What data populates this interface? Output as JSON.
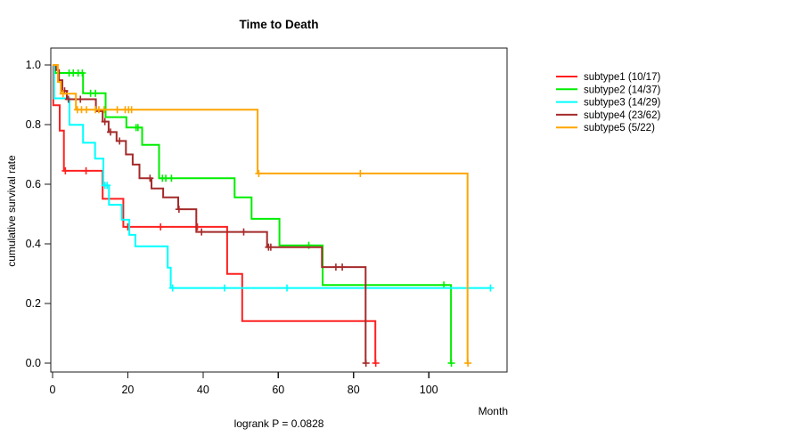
{
  "title": "Time to Death",
  "footer": "logrank P = 0.0828",
  "chart_data": {
    "type": "line",
    "subtype": "kaplan-meier-step",
    "title": "Time to Death",
    "xlabel": "Month",
    "ylabel": "cumulative survival rate",
    "annotation": "logrank P = 0.0828",
    "xlim": [
      0,
      120.8
    ],
    "ylim": [
      0.0,
      1.0
    ],
    "xticks": [
      0,
      20,
      40,
      60,
      80,
      100
    ],
    "yticks": [
      0.0,
      0.2,
      0.4,
      0.6,
      0.8,
      1.0
    ],
    "grid": false,
    "legend_position": "right",
    "series": [
      {
        "name": "subtype1",
        "label": "subtype1 (10/17)",
        "events": "10/17",
        "color": "#ff2020",
        "steps": [
          [
            0,
            1.0
          ],
          [
            0.2,
            0.865
          ],
          [
            1.9,
            0.78
          ],
          [
            3.0,
            0.645
          ],
          [
            13.3,
            0.551
          ],
          [
            18.8,
            0.457
          ],
          [
            46.4,
            0.299
          ],
          [
            50.4,
            0.141
          ],
          [
            85.8,
            0.0
          ]
        ],
        "censor_months": [
          3.4,
          8.9,
          20.0,
          28.7,
          38.5,
          85.9
        ],
        "end_month": 85.9
      },
      {
        "name": "subtype2",
        "label": "subtype2 (14/37)",
        "events": "14/37",
        "color": "#00ee00",
        "steps": [
          [
            0,
            1.0
          ],
          [
            0.7,
            0.973
          ],
          [
            8.1,
            0.905
          ],
          [
            14.1,
            0.825
          ],
          [
            19.6,
            0.79
          ],
          [
            23.8,
            0.732
          ],
          [
            28.3,
            0.62
          ],
          [
            48.4,
            0.556
          ],
          [
            52.9,
            0.484
          ],
          [
            60.3,
            0.395
          ],
          [
            71.8,
            0.262
          ],
          [
            105.9,
            0.0
          ]
        ],
        "censor_months": [
          4.4,
          5.5,
          6.8,
          7.9,
          10.1,
          11.4,
          22.2,
          22.7,
          29.2,
          30.1,
          31.6,
          68.1,
          104.0,
          106.0
        ],
        "end_month": 106.0
      },
      {
        "name": "subtype3",
        "label": "subtype3 (14/29)",
        "events": "14/29",
        "color": "#00ffff",
        "steps": [
          [
            0,
            1.0
          ],
          [
            0.4,
            0.888
          ],
          [
            4.5,
            0.799
          ],
          [
            8.1,
            0.739
          ],
          [
            11.3,
            0.686
          ],
          [
            13.5,
            0.596
          ],
          [
            15.0,
            0.531
          ],
          [
            18.4,
            0.481
          ],
          [
            20.4,
            0.43
          ],
          [
            22.0,
            0.392
          ],
          [
            30.6,
            0.32
          ],
          [
            31.4,
            0.252
          ]
        ],
        "censor_months": [
          13.9,
          14.5,
          31.9,
          45.7,
          62.3,
          116.4
        ],
        "end_month": 116.4
      },
      {
        "name": "subtype4",
        "label": "subtype4 (23/62)",
        "events": "23/62",
        "color": "#a52a2a",
        "steps": [
          [
            0,
            1.0
          ],
          [
            0.9,
            0.983
          ],
          [
            1.7,
            0.949
          ],
          [
            2.6,
            0.913
          ],
          [
            3.8,
            0.885
          ],
          [
            11.5,
            0.845
          ],
          [
            13.3,
            0.81
          ],
          [
            14.9,
            0.775
          ],
          [
            17.0,
            0.745
          ],
          [
            19.5,
            0.7
          ],
          [
            21.3,
            0.666
          ],
          [
            23.1,
            0.62
          ],
          [
            26.3,
            0.586
          ],
          [
            29.4,
            0.556
          ],
          [
            33.4,
            0.516
          ],
          [
            38.2,
            0.44
          ],
          [
            57.0,
            0.389
          ],
          [
            71.6,
            0.322
          ],
          [
            83.2,
            0.0
          ]
        ],
        "censor_months": [
          3.2,
          4.2,
          7.4,
          13.9,
          15.4,
          17.8,
          25.9,
          33.6,
          39.6,
          50.8,
          57.4,
          58.0,
          75.3,
          77.0,
          83.3
        ],
        "end_month": 83.3
      },
      {
        "name": "subtype5",
        "label": "subtype5 (5/22)",
        "events": "5/22",
        "color": "#ffa500",
        "steps": [
          [
            0,
            1.0
          ],
          [
            1.4,
            0.943
          ],
          [
            2.2,
            0.904
          ],
          [
            6.2,
            0.85
          ],
          [
            54.5,
            0.636
          ],
          [
            110.3,
            0.0
          ]
        ],
        "censor_months": [
          2.8,
          6.6,
          7.7,
          9.0,
          11.4,
          12.3,
          13.7,
          17.2,
          19.3,
          20.2,
          21.0,
          54.8,
          81.8,
          110.4
        ],
        "end_month": 110.4
      }
    ]
  }
}
